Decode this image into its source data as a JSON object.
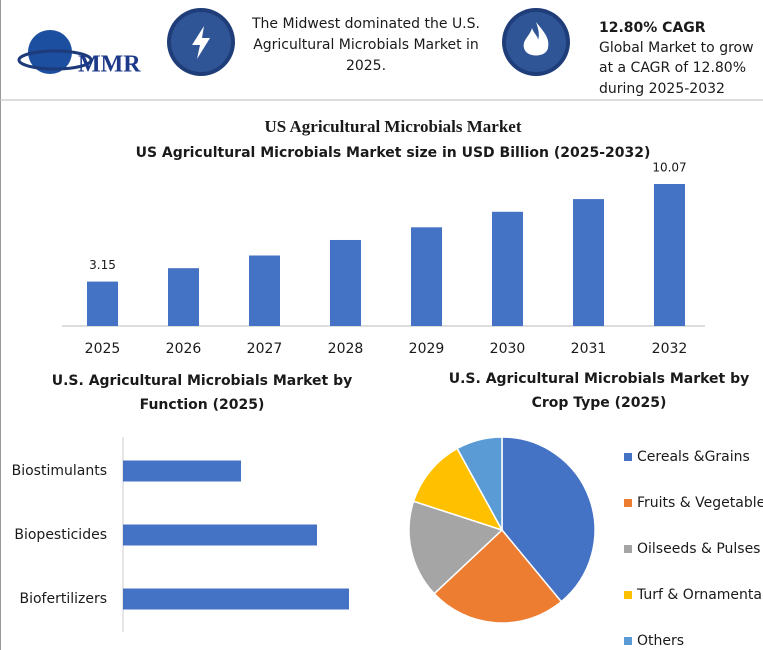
{
  "header": {
    "logo": "MMR",
    "note_lines": [
      "The Midwest dominated the U.S.",
      "Agricultural Microbials Market in",
      "2025."
    ],
    "cagr_title": "12.80% CAGR",
    "cagr_lines": [
      "Global Market to grow",
      "at a CAGR of 12.80%",
      "during 2025-2032"
    ]
  },
  "chart_data": [
    {
      "type": "bar",
      "title": "US Agricultural Microbials Market",
      "subtitle": "US Agricultural Microbials Market size in USD Billion (2025-2032)",
      "categories": [
        "2025",
        "2026",
        "2027",
        "2028",
        "2029",
        "2030",
        "2031",
        "2032"
      ],
      "values": [
        3.15,
        4.1,
        5.0,
        6.1,
        7.0,
        8.1,
        9.0,
        10.07
      ],
      "color": "#4472c4"
    },
    {
      "type": "hbar",
      "title": [
        "U.S. Agricultural Microbials Market by",
        "Function (2025)"
      ],
      "categories": [
        "Biostimulants",
        "Biopesticides",
        "Biofertilizers"
      ],
      "values": [
        118,
        194,
        226
      ],
      "color": "#4472c4"
    },
    {
      "type": "pie",
      "title": [
        "U.S. Agricultural Microbials Market by",
        "Crop Type (2025)"
      ],
      "categories": [
        "Cereals &Grains",
        "Fruits & Vegetables",
        "Oilseeds & Pulses",
        "Turf & Ornamental",
        "Others"
      ],
      "values": [
        39,
        24,
        17,
        12,
        8
      ],
      "colors": [
        "#4472c4",
        "#ed7d31",
        "#a5a5a5",
        "#ffc000",
        "#5b9bd5"
      ]
    }
  ]
}
